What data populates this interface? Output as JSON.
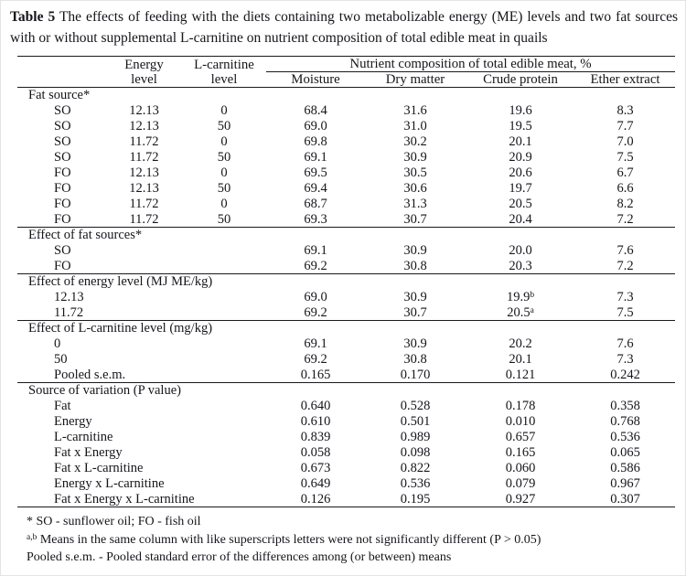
{
  "caption": {
    "label": "Table 5",
    "text": " The effects of feeding with the diets containing two metabolizable energy (ME) levels and two fat sources with or without supplemental L-carnitine on nutrient composition of total edible meat in quails"
  },
  "table": {
    "header": {
      "energy_line1": "Energy",
      "energy_line2": "level",
      "carnitine_line1": "L-carnitine",
      "carnitine_line2": "level",
      "span": "Nutrient composition of total edible meat, %",
      "sub": [
        "Moisture",
        "Dry matter",
        "Crude protein",
        "Ether extract"
      ]
    },
    "sections": [
      {
        "title": "Fat source*",
        "factor_cols": true,
        "rows": [
          {
            "label": "SO",
            "energy": "12.13",
            "carnitine": "0",
            "values": [
              "68.4",
              "31.6",
              "19.6",
              "8.3"
            ]
          },
          {
            "label": "SO",
            "energy": "12.13",
            "carnitine": "50",
            "values": [
              "69.0",
              "31.0",
              "19.5",
              "7.7"
            ]
          },
          {
            "label": "SO",
            "energy": "11.72",
            "carnitine": "0",
            "values": [
              "69.8",
              "30.2",
              "20.1",
              "7.0"
            ]
          },
          {
            "label": "SO",
            "energy": "11.72",
            "carnitine": "50",
            "values": [
              "69.1",
              "30.9",
              "20.9",
              "7.5"
            ]
          },
          {
            "label": "FO",
            "energy": "12.13",
            "carnitine": "0",
            "values": [
              "69.5",
              "30.5",
              "20.6",
              "6.7"
            ]
          },
          {
            "label": "FO",
            "energy": "12.13",
            "carnitine": "50",
            "values": [
              "69.4",
              "30.6",
              "19.7",
              "6.6"
            ]
          },
          {
            "label": "FO",
            "energy": "11.72",
            "carnitine": "0",
            "values": [
              "68.7",
              "31.3",
              "20.5",
              "8.2"
            ]
          },
          {
            "label": "FO",
            "energy": "11.72",
            "carnitine": "50",
            "values": [
              "69.3",
              "30.7",
              "20.4",
              "7.2"
            ]
          }
        ]
      },
      {
        "title": "Effect of fat sources*",
        "factor_cols": false,
        "rows": [
          {
            "label": "SO",
            "values": [
              "69.1",
              "30.9",
              "20.0",
              "7.6"
            ]
          },
          {
            "label": "FO",
            "values": [
              "69.2",
              "30.8",
              "20.3",
              "7.2"
            ]
          }
        ]
      },
      {
        "title": "Effect of energy level (MJ ME/kg)",
        "factor_cols": false,
        "rows": [
          {
            "label": "12.13",
            "values": [
              "69.0",
              "30.9",
              {
                "v": "19.9",
                "sup": "b"
              },
              "7.3"
            ]
          },
          {
            "label": "11.72",
            "values": [
              "69.2",
              "30.7",
              {
                "v": "20.5",
                "sup": "a"
              },
              "7.5"
            ]
          }
        ]
      },
      {
        "title": "Effect of L-carnitine level (mg/kg)",
        "factor_cols": false,
        "rows": [
          {
            "label": "0",
            "values": [
              "69.1",
              "30.9",
              "20.2",
              "7.6"
            ]
          },
          {
            "label": "50",
            "values": [
              "69.2",
              "30.8",
              "20.1",
              "7.3"
            ]
          },
          {
            "label": "Pooled s.e.m.",
            "values": [
              "0.165",
              "0.170",
              "0.121",
              "0.242"
            ]
          }
        ]
      },
      {
        "title": "Source of variation (P value)",
        "factor_cols": false,
        "rows": [
          {
            "label": "Fat",
            "values": [
              "0.640",
              "0.528",
              "0.178",
              "0.358"
            ]
          },
          {
            "label": "Energy",
            "values": [
              "0.610",
              "0.501",
              "0.010",
              "0.768"
            ]
          },
          {
            "label": "L-carnitine",
            "values": [
              "0.839",
              "0.989",
              "0.657",
              "0.536"
            ]
          },
          {
            "label": "Fat x Energy",
            "values": [
              "0.058",
              "0.098",
              "0.165",
              "0.065"
            ]
          },
          {
            "label": "Fat x L-carnitine",
            "values": [
              "0.673",
              "0.822",
              "0.060",
              "0.586"
            ]
          },
          {
            "label": "Energy x L-carnitine",
            "values": [
              "0.649",
              "0.536",
              "0.079",
              "0.967"
            ]
          },
          {
            "label": "Fat x Energy x L-carnitine",
            "values": [
              "0.126",
              "0.195",
              "0.927",
              "0.307"
            ]
          }
        ]
      }
    ]
  },
  "footnotes": {
    "fat_sources": "* SO - sunflower oil; FO - fish oil",
    "superscript_prefix": "a,b",
    "superscript_text": " Means in the same column with like superscripts letters were not significantly different (P > 0.05)",
    "pooled_sem": "Pooled s.e.m. - Pooled standard error of the differences among (or between) means"
  }
}
